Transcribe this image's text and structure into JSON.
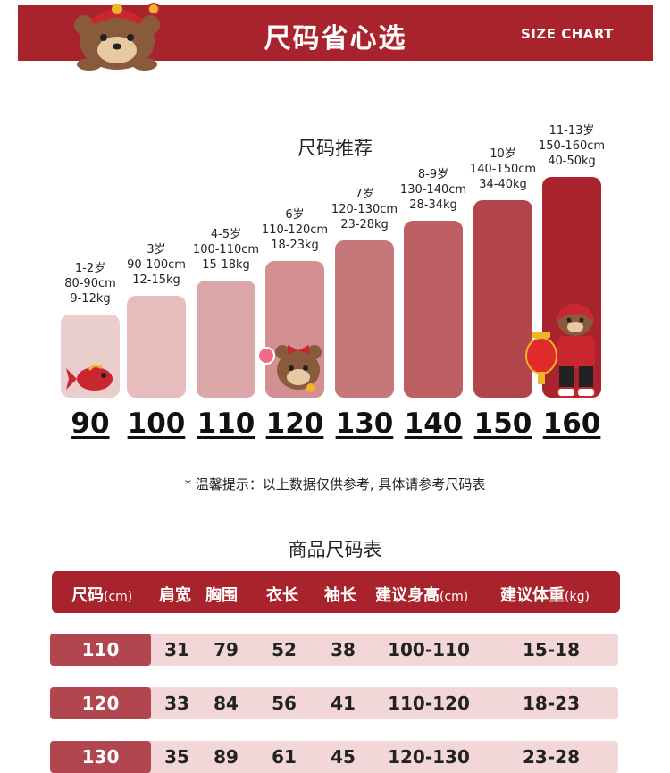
{
  "banner": {
    "title": "尺码省心选",
    "subtitle": "SIZE CHART"
  },
  "recommend": {
    "title": "尺码推荐",
    "bars": [
      {
        "age": "1-2岁",
        "height": "80-90cm",
        "weight": "9-12kg",
        "size": "90",
        "color": "#eacdcd"
      },
      {
        "age": "3岁",
        "height": "90-100cm",
        "weight": "12-15kg",
        "size": "100",
        "color": "#e6bcbd"
      },
      {
        "age": "4-5岁",
        "height": "100-110cm",
        "weight": "15-18kg",
        "size": "110",
        "color": "#dca7a9"
      },
      {
        "age": "6岁",
        "height": "110-120cm",
        "weight": "18-23kg",
        "size": "120",
        "color": "#d38f92"
      },
      {
        "age": "7岁",
        "height": "120-130cm",
        "weight": "23-28kg",
        "size": "130",
        "color": "#c6777a"
      },
      {
        "age": "8-9岁",
        "height": "130-140cm",
        "weight": "28-34kg",
        "size": "140",
        "color": "#bc5e62"
      },
      {
        "age": "10岁",
        "height": "140-150cm",
        "weight": "34-40kg",
        "size": "150",
        "color": "#b2454b"
      },
      {
        "age": "11-13岁",
        "height": "150-160cm",
        "weight": "40-50kg",
        "size": "160",
        "color": "#a8232c"
      }
    ]
  },
  "note": "* 温馨提示：以上数据仅供参考, 具体请参考尺码表",
  "table": {
    "title": "商品尺码表",
    "headers": [
      {
        "label": "尺码",
        "unit": "(cm)"
      },
      {
        "label": "肩宽",
        "unit": ""
      },
      {
        "label": "胸围",
        "unit": ""
      },
      {
        "label": "衣长",
        "unit": ""
      },
      {
        "label": "袖长",
        "unit": ""
      },
      {
        "label": "建议身高",
        "unit": "(cm)"
      },
      {
        "label": "建议体重",
        "unit": "(kg)"
      }
    ],
    "rows": [
      [
        "110",
        "31",
        "79",
        "52",
        "38",
        "100-110",
        "15-18"
      ],
      [
        "120",
        "33",
        "84",
        "56",
        "41",
        "110-120",
        "18-23"
      ],
      [
        "130",
        "35",
        "89",
        "61",
        "45",
        "120-130",
        "23-28"
      ]
    ]
  }
}
